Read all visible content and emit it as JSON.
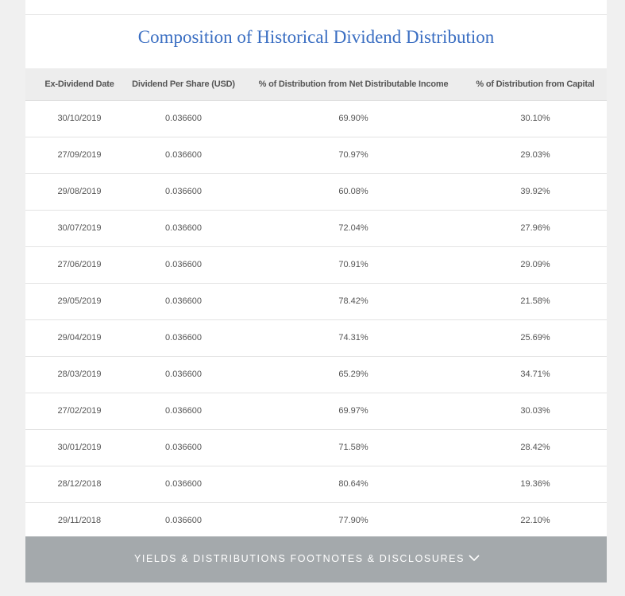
{
  "title": "Composition of Historical Dividend Distribution",
  "columns": [
    "Ex-Dividend Date",
    "Dividend Per Share (USD)",
    "% of Distribution from Net Distributable Income",
    "% of Distribution from Capital"
  ],
  "rows": [
    [
      "30/10/2019",
      "0.036600",
      "69.90%",
      "30.10%"
    ],
    [
      "27/09/2019",
      "0.036600",
      "70.97%",
      "29.03%"
    ],
    [
      "29/08/2019",
      "0.036600",
      "60.08%",
      "39.92%"
    ],
    [
      "30/07/2019",
      "0.036600",
      "72.04%",
      "27.96%"
    ],
    [
      "27/06/2019",
      "0.036600",
      "70.91%",
      "29.09%"
    ],
    [
      "29/05/2019",
      "0.036600",
      "78.42%",
      "21.58%"
    ],
    [
      "29/04/2019",
      "0.036600",
      "74.31%",
      "25.69%"
    ],
    [
      "28/03/2019",
      "0.036600",
      "65.29%",
      "34.71%"
    ],
    [
      "27/02/2019",
      "0.036600",
      "69.97%",
      "30.03%"
    ],
    [
      "30/01/2019",
      "0.036600",
      "71.58%",
      "28.42%"
    ],
    [
      "28/12/2018",
      "0.036600",
      "80.64%",
      "19.36%"
    ],
    [
      "29/11/2018",
      "0.036600",
      "77.90%",
      "22.10%"
    ]
  ],
  "footer": {
    "label": "YIELDS & DISTRIBUTIONS FOOTNOTES & DISCLOSURES",
    "icon": "chevron-down-icon"
  },
  "colors": {
    "title": "#3a6ec2",
    "footer_bg": "#a4a9ac",
    "header_bg": "#ededed"
  }
}
